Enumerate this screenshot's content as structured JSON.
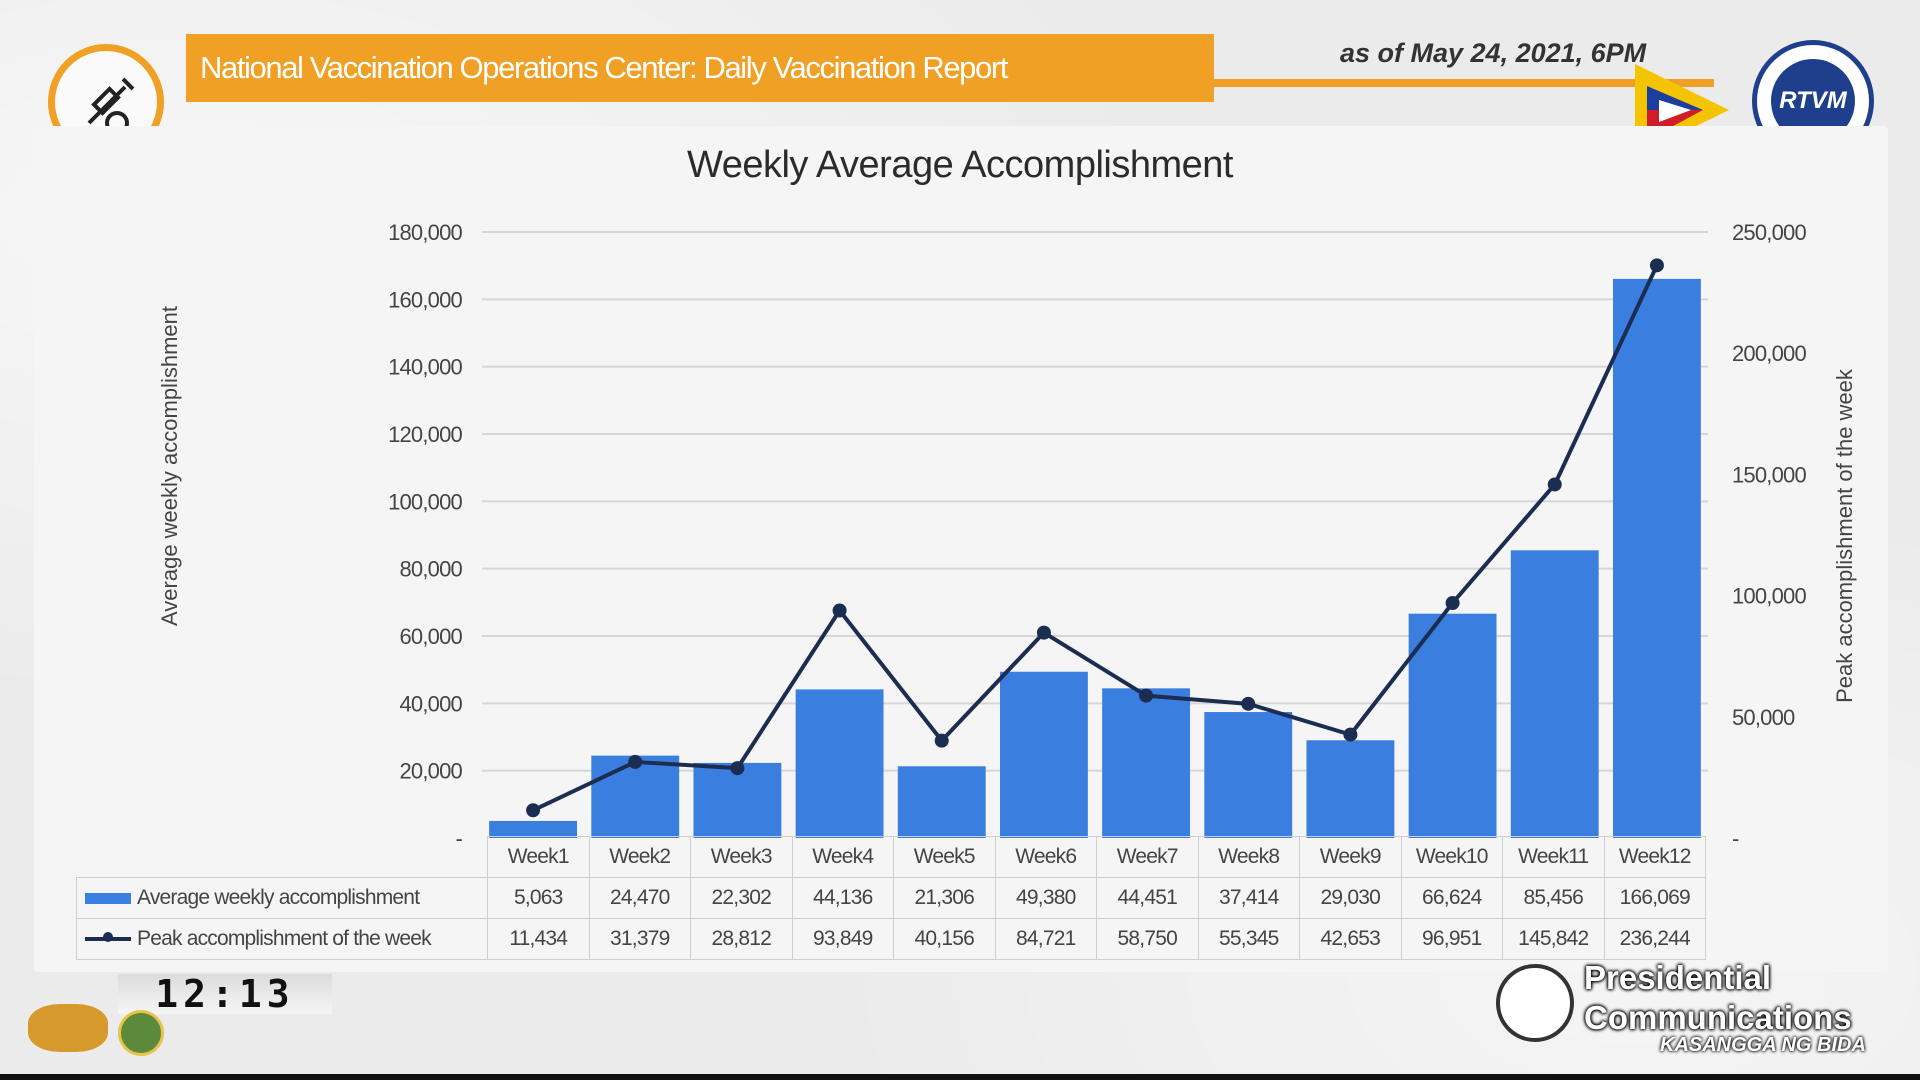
{
  "header": {
    "title": "National Vaccination Operations Center: Daily Vaccination Report",
    "date": "as of May 24, 2021, 6PM",
    "logo_right_text": "RTVM"
  },
  "colors": {
    "accent_orange": "#f0a024",
    "bar_blue": "#3a7ee0",
    "line_navy": "#1c2d52"
  },
  "chart_data": {
    "type": "bar",
    "title": "Weekly Average Accomplishment",
    "ylabel": "Average weekly accomplishment",
    "ylabel_right": "Peak accomplishment of the week",
    "categories": [
      "Week1",
      "Week2",
      "Week3",
      "Week4",
      "Week5",
      "Week6",
      "Week7",
      "Week8",
      "Week9",
      "Week10",
      "Week11",
      "Week12"
    ],
    "ylim": [
      0,
      180000
    ],
    "y2lim": [
      0,
      250000
    ],
    "yticks": [
      "-",
      "20,000",
      "40,000",
      "60,000",
      "80,000",
      "100,000",
      "120,000",
      "140,000",
      "160,000",
      "180,000"
    ],
    "y2ticks": [
      "-",
      "50,000",
      "100,000",
      "150,000",
      "200,000",
      "250,000"
    ],
    "grid": true,
    "legend": "data-table",
    "series": [
      {
        "name": "Average weekly accomplishment",
        "type": "bar",
        "axis": "left",
        "values": [
          5063,
          24470,
          22302,
          44136,
          21306,
          49380,
          44451,
          37414,
          29030,
          66624,
          85456,
          166069
        ],
        "labels": [
          "5,063",
          "24,470",
          "22,302",
          "44,136",
          "21,306",
          "49,380",
          "44,451",
          "37,414",
          "29,030",
          "66,624",
          "85,456",
          "166,069"
        ]
      },
      {
        "name": "Peak accomplishment of the week",
        "type": "line",
        "axis": "right",
        "values": [
          11434,
          31379,
          28812,
          93849,
          40156,
          84721,
          58750,
          55345,
          42653,
          96951,
          145842,
          236244
        ],
        "labels": [
          "11,434",
          "31,379",
          "28,812",
          "93,849",
          "40,156",
          "84,721",
          "58,750",
          "55,345",
          "42,653",
          "96,951",
          "145,842",
          "236,244"
        ]
      }
    ]
  },
  "footer": {
    "clock": "12:13",
    "broadcaster_line1": "Presidential",
    "broadcaster_line2": "Communications",
    "tagline": "KASANGGA NG BIDA"
  }
}
